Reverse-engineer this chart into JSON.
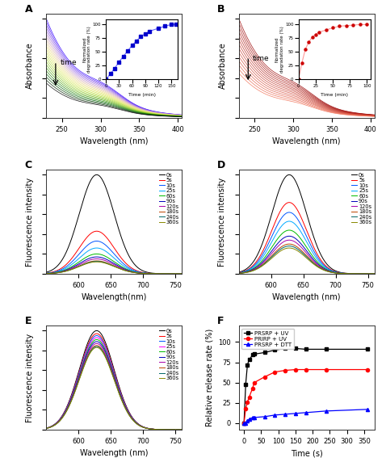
{
  "panel_labels": [
    "A",
    "B",
    "C",
    "D",
    "E",
    "F"
  ],
  "inset_A_x": [
    0,
    10,
    20,
    30,
    40,
    50,
    60,
    70,
    80,
    90,
    100,
    120,
    135,
    150,
    160
  ],
  "inset_A_y": [
    0,
    10,
    20,
    32,
    42,
    52,
    62,
    70,
    78,
    83,
    88,
    93,
    97,
    100,
    100
  ],
  "inset_B_x": [
    0,
    5,
    10,
    15,
    20,
    25,
    30,
    40,
    50,
    60,
    70,
    80,
    90,
    100
  ],
  "inset_B_y": [
    0,
    30,
    55,
    68,
    77,
    82,
    86,
    90,
    94,
    97,
    98,
    99,
    100,
    100
  ],
  "fluorescence_times": [
    "0s",
    "5s",
    "10s",
    "25s",
    "60s",
    "90s",
    "120s",
    "180s",
    "240s",
    "360s"
  ],
  "legend_colors_C": [
    "#000000",
    "#ff0000",
    "#0055ff",
    "#00aaff",
    "#00bb00",
    "#0000bb",
    "#aa00aa",
    "#bb4400",
    "#006666",
    "#888800"
  ],
  "legend_colors_D": [
    "#000000",
    "#ff0000",
    "#0055ff",
    "#00aaff",
    "#00bb00",
    "#0000bb",
    "#aa00aa",
    "#bb4400",
    "#006666",
    "#888800"
  ],
  "legend_colors_E": [
    "#000000",
    "#ff0000",
    "#0055ff",
    "#ff00ff",
    "#00bb00",
    "#0000bb",
    "#aa00aa",
    "#bb4400",
    "#006666",
    "#888800"
  ],
  "release_time": [
    0,
    5,
    10,
    15,
    25,
    30,
    60,
    90,
    120,
    150,
    180,
    240,
    360
  ],
  "release_PRSRP_UV": [
    0,
    48,
    72,
    78,
    84,
    85,
    87,
    90,
    92,
    92,
    91,
    91,
    91
  ],
  "release_PRIRP_UV": [
    0,
    18,
    26,
    32,
    43,
    50,
    57,
    63,
    65,
    66,
    66,
    66,
    66
  ],
  "release_PRSRP_DTT": [
    0,
    0,
    3,
    5,
    7,
    7,
    8,
    10,
    11,
    12,
    13,
    15,
    17
  ],
  "background_color": "#ffffff"
}
